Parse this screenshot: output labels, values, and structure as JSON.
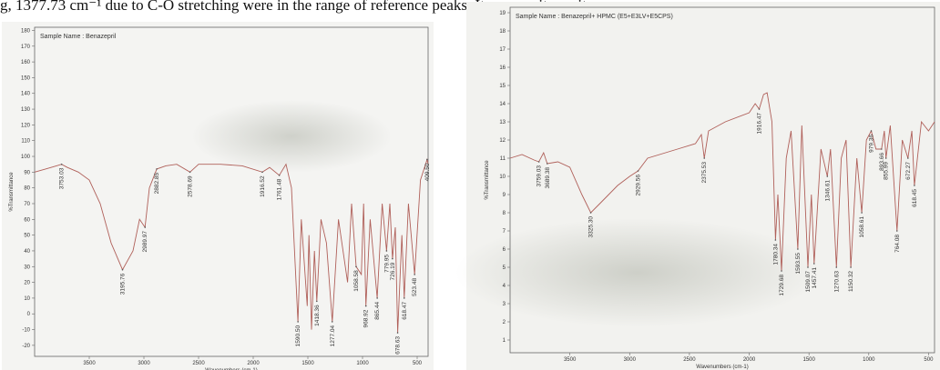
{
  "caption_text": "g, 1377.73 cm⁻¹ due to C-O stretching were in the range of reference peaks. It ensures its purity.",
  "chart_data": [
    {
      "type": "line",
      "title": "Sample Name : Benazepril",
      "x_label": "Wavenumbers (cm-1)",
      "y_label": "%Transmittance",
      "xlim": [
        4000,
        400
      ],
      "ylim": [
        -27,
        182
      ],
      "xticks": [
        3500,
        3000,
        2500,
        2000,
        1500,
        1000,
        500
      ],
      "yticks": [
        -20,
        -10,
        0,
        10,
        20,
        30,
        40,
        50,
        60,
        70,
        80,
        90,
        100,
        110,
        120,
        130,
        140,
        150,
        160,
        170,
        180
      ],
      "series": [
        {
          "color": "#b0605a",
          "x": [
            4000,
            3900,
            3800,
            3753,
            3700,
            3600,
            3500,
            3400,
            3300,
            3195.76,
            3100,
            3040,
            2989.97,
            2950,
            2882.85,
            2800,
            2700,
            2578.69,
            2500,
            2300,
            2100,
            1916.52,
            1850,
            1761.48,
            1700,
            1650,
            1590.5,
            1560,
            1506,
            1490,
            1467,
            1440,
            1418.36,
            1380,
            1330,
            1277.04,
            1220,
            1137,
            1100,
            1058.58,
            1011,
            990,
            968.92,
            930,
            865.44,
            820,
            779.95,
            750,
            726.19,
            700,
            678.63,
            640,
            618.47,
            580,
            523.48,
            470,
            409.5,
            400
          ],
          "values": [
            90,
            92,
            94,
            95,
            93,
            90,
            85,
            70,
            45,
            28,
            40,
            60,
            55,
            80,
            92,
            94,
            95,
            90,
            95,
            95,
            94,
            90,
            93,
            88,
            95,
            80,
            -5,
            60,
            5,
            50,
            -10,
            40,
            8,
            60,
            45,
            -5,
            60,
            20,
            70,
            30,
            25,
            70,
            5,
            60,
            10,
            70,
            40,
            70,
            35,
            55,
            -12,
            50,
            10,
            70,
            25,
            85,
            98,
            95
          ]
        }
      ],
      "peaks": [
        {
          "x": 3753.03,
          "y": 95,
          "label": "3753.03"
        },
        {
          "x": 3195.76,
          "y": 28,
          "label": "3195.76"
        },
        {
          "x": 2989.97,
          "y": 55,
          "label": "2989.97"
        },
        {
          "x": 2882.85,
          "y": 92,
          "label": "2882.85"
        },
        {
          "x": 2578.69,
          "y": 90,
          "label": "2578.69"
        },
        {
          "x": 1916.52,
          "y": 90,
          "label": "1916.52"
        },
        {
          "x": 1761.48,
          "y": 88,
          "label": "1761.48"
        },
        {
          "x": 1590.5,
          "y": -5,
          "label": "1590.50"
        },
        {
          "x": 1418.36,
          "y": 8,
          "label": "1418.36"
        },
        {
          "x": 1277.04,
          "y": -5,
          "label": "1277.04"
        },
        {
          "x": 1058.58,
          "y": 30,
          "label": "1058.58"
        },
        {
          "x": 968.92,
          "y": 5,
          "label": "968.92"
        },
        {
          "x": 865.44,
          "y": 10,
          "label": "865.44"
        },
        {
          "x": 779.95,
          "y": 40,
          "label": "779.95"
        },
        {
          "x": 726.19,
          "y": 35,
          "label": "726.19"
        },
        {
          "x": 678.63,
          "y": -12,
          "label": "678.63"
        },
        {
          "x": 618.47,
          "y": 10,
          "label": "618.47"
        },
        {
          "x": 523.48,
          "y": 25,
          "label": "523.48"
        },
        {
          "x": 409.5,
          "y": 98,
          "label": "409.50"
        }
      ]
    },
    {
      "type": "line",
      "title": "Sample Name : Benazepril+ HPMC (E5+E3LV+E5CPS)",
      "x_label": "Wavenumbers (cm-1)",
      "y_label": "%Transmittance",
      "xlim": [
        4000,
        450
      ],
      "ylim": [
        0.3,
        19.3
      ],
      "xticks": [
        3500,
        3000,
        2500,
        2000,
        1500,
        1000,
        500
      ],
      "yticks": [
        1,
        2,
        3,
        4,
        5,
        6,
        7,
        8,
        9,
        10,
        11,
        12,
        13,
        14,
        15,
        16,
        17,
        18,
        19
      ],
      "series": [
        {
          "color": "#b0605a",
          "x": [
            4000,
            3900,
            3800,
            3759.03,
            3720,
            3689.38,
            3600,
            3500,
            3400,
            3325.3,
            3250,
            3100,
            3000,
            2929.56,
            2850,
            2600,
            2450,
            2400,
            2375.53,
            2340,
            2200,
            2000,
            1950,
            1916.47,
            1880,
            1850,
            1810,
            1780.34,
            1760,
            1729.68,
            1690,
            1650,
            1593.55,
            1560,
            1509.07,
            1480,
            1457.41,
            1400,
            1346.61,
            1320,
            1270.63,
            1230,
            1190,
            1150.32,
            1100,
            1058.61,
            1020,
            979.36,
            940,
            893.66,
            870,
            855.99,
            820,
            764.08,
            720,
            672.27,
            640,
            618.45,
            560,
            500,
            450
          ],
          "values": [
            11,
            11.2,
            10.9,
            10.8,
            11.3,
            10.7,
            10.8,
            10.5,
            9,
            8,
            8.5,
            9.5,
            10,
            10.3,
            11,
            11.5,
            11.8,
            12.3,
            11,
            12.5,
            13,
            13.5,
            14,
            13.7,
            14.5,
            14.6,
            13,
            6.5,
            9,
            4.8,
            11,
            12.5,
            6,
            12.8,
            5,
            9,
            5.2,
            11.5,
            10,
            11.5,
            5,
            11,
            12,
            5,
            11,
            8,
            12,
            12.5,
            11.5,
            11.5,
            12.5,
            11,
            12.8,
            7,
            12,
            11,
            12.5,
            9.5,
            13,
            12.5,
            13
          ]
        }
      ],
      "peaks": [
        {
          "x": 3759.03,
          "y": 10.8,
          "label": "3759.03"
        },
        {
          "x": 3689.38,
          "y": 10.7,
          "label": "3689.38"
        },
        {
          "x": 3325.3,
          "y": 8,
          "label": "3325.30"
        },
        {
          "x": 2929.56,
          "y": 10.3,
          "label": "2929.56"
        },
        {
          "x": 2375.53,
          "y": 11,
          "label": "2375.53"
        },
        {
          "x": 1916.47,
          "y": 13.7,
          "label": "1916.47"
        },
        {
          "x": 1780.34,
          "y": 6.5,
          "label": "1780.34"
        },
        {
          "x": 1729.68,
          "y": 4.8,
          "label": "1729.68"
        },
        {
          "x": 1593.55,
          "y": 6,
          "label": "1593.55"
        },
        {
          "x": 1509.07,
          "y": 5,
          "label": "1509.07"
        },
        {
          "x": 1457.41,
          "y": 5.2,
          "label": "1457.41"
        },
        {
          "x": 1346.61,
          "y": 10,
          "label": "1346.61"
        },
        {
          "x": 1270.63,
          "y": 5,
          "label": "1270.63"
        },
        {
          "x": 1150.32,
          "y": 5,
          "label": "1150.32"
        },
        {
          "x": 1058.61,
          "y": 8,
          "label": "1058.61"
        },
        {
          "x": 979.36,
          "y": 12.5,
          "label": "979.36"
        },
        {
          "x": 893.66,
          "y": 11.5,
          "label": "893.66"
        },
        {
          "x": 855.99,
          "y": 11,
          "label": "855.99"
        },
        {
          "x": 764.08,
          "y": 7,
          "label": "764.08"
        },
        {
          "x": 672.27,
          "y": 11,
          "label": "672.27"
        },
        {
          "x": 618.45,
          "y": 9.5,
          "label": "618.45"
        }
      ]
    }
  ]
}
